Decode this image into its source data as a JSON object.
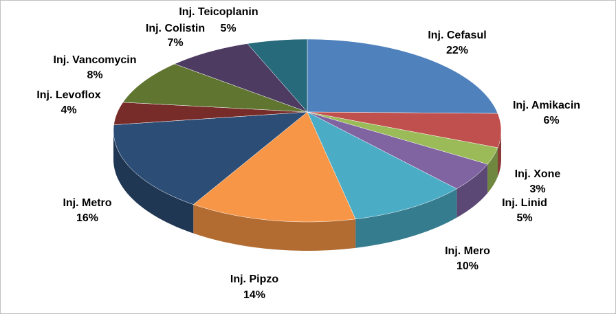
{
  "chart_data": {
    "type": "pie3d",
    "categories": [
      "Inj. Cefasul",
      "Inj.  Amikacin",
      "Inj. Xone",
      "Inj. Linid",
      "Inj. Mero",
      "Inj. Pipzo",
      "Inj. Metro",
      "Inj. Levoflox",
      "Inj. Vancomycin",
      "Inj. Colistin",
      "Inj. Teicoplanin"
    ],
    "values": [
      22,
      6,
      3,
      5,
      10,
      14,
      16,
      4,
      8,
      7,
      5
    ],
    "value_labels": [
      "22%",
      "6%",
      "3%",
      "5%",
      "10%",
      "14%",
      "16%",
      "4%",
      "8%",
      "7%",
      "5%"
    ],
    "colors": [
      "#4f81bd",
      "#c0504d",
      "#9bbb59",
      "#8064a2",
      "#4bacc6",
      "#f79646",
      "#2c4d75",
      "#772c2a",
      "#5f7530",
      "#4d3b62",
      "#276a7c"
    ]
  }
}
